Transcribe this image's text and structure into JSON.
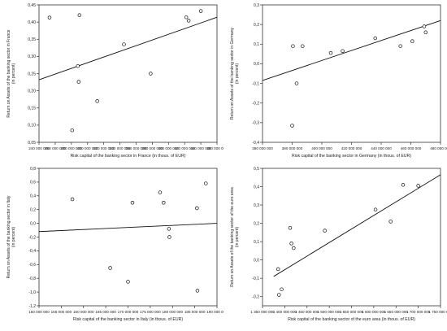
{
  "chart_data": [
    {
      "type": "scatter",
      "xlabel": "Risk capital of the banking sector in France (in thous. of EUR)",
      "ylabel": "Return on Assets of the banking sector in France (in percent)",
      "xlim": [
        240000000,
        460000000
      ],
      "ylim": [
        0.05,
        0.45
      ],
      "xticks": [
        240000000,
        260000000,
        280000000,
        300000000,
        320000000,
        340000000,
        360000000,
        380000000,
        400000000,
        420000000,
        440000000,
        460000000
      ],
      "yticks": [
        0.05,
        0.1,
        0.15,
        0.2,
        0.25,
        0.3,
        0.35,
        0.4,
        0.45
      ],
      "xtick_labels": [
        "240 000 000",
        "260 000 000",
        "280 000 000",
        "300 000 000",
        "320 000 000",
        "340 000 000",
        "360 000 000",
        "380 000 000",
        "400 000 000",
        "420 000 000",
        "440 000 000",
        "460 000 000"
      ],
      "ytick_labels": [
        "0,05",
        "0,10",
        "0,15",
        "0,20",
        "0,25",
        "0,30",
        "0,35",
        "0,40",
        "0,45"
      ],
      "points": [
        [
          253000000,
          0.413
        ],
        [
          281000000,
          0.085
        ],
        [
          288000000,
          0.272
        ],
        [
          289000000,
          0.226
        ],
        [
          290000000,
          0.42
        ],
        [
          312000000,
          0.17
        ],
        [
          345000000,
          0.335
        ],
        [
          378000000,
          0.25
        ],
        [
          422000000,
          0.414
        ],
        [
          425000000,
          0.404
        ],
        [
          440000000,
          0.432
        ]
      ],
      "trendline": [
        [
          240000000,
          0.232
        ],
        [
          460000000,
          0.414
        ]
      ]
    },
    {
      "type": "scatter",
      "xlabel": "Risk capital of the banking sector in Germany (in thous. of EUR)",
      "ylabel": "Return on Assets of the banking sector in Germany (in percent)",
      "xlim": [
        360000000,
        480000000
      ],
      "ylim": [
        -0.4,
        0.3
      ],
      "xticks": [
        360000000,
        380000000,
        400000000,
        420000000,
        440000000,
        460000000,
        480000000
      ],
      "yticks": [
        -0.4,
        -0.3,
        -0.2,
        -0.1,
        0,
        0.1,
        0.2,
        0.3
      ],
      "xtick_labels": [
        "360 000 000",
        "380 000 000",
        "400 000 000",
        "420 000 000",
        "440 000 000",
        "460 000 000",
        "480 000 000"
      ],
      "ytick_labels": [
        "-0,4",
        "-0,3",
        "-0,2",
        "-0,1",
        "0,0",
        "0,1",
        "0,2",
        "0,3"
      ],
      "points": [
        [
          380000000,
          -0.315
        ],
        [
          380500000,
          0.09
        ],
        [
          383000000,
          -0.1
        ],
        [
          387000000,
          0.09
        ],
        [
          406000000,
          0.055
        ],
        [
          414000000,
          0.065
        ],
        [
          436000000,
          0.13
        ],
        [
          453000000,
          0.09
        ],
        [
          461000000,
          0.115
        ],
        [
          469000000,
          0.19
        ],
        [
          470000000,
          0.16
        ]
      ],
      "trendline": [
        [
          360000000,
          -0.085
        ],
        [
          480000000,
          0.22
        ]
      ]
    },
    {
      "type": "scatter",
      "xlabel": "Risk capital of the banking sector in Italy (in thous. of EUR)",
      "ylabel": "Return on Assets of the banking sector in Italy (in percent)",
      "xlim": [
        150000000,
        190000000
      ],
      "ylim": [
        -1.2,
        0.8
      ],
      "xticks": [
        150000000,
        155000000,
        160000000,
        165000000,
        170000000,
        175000000,
        180000000,
        185000000,
        190000000
      ],
      "yticks": [
        -1.2,
        -1.0,
        -0.8,
        -0.6,
        -0.4,
        -0.2,
        0,
        0.2,
        0.4,
        0.6,
        0.8
      ],
      "xtick_labels": [
        "150 000 000",
        "155 000 000",
        "160 000 000",
        "165 000 000",
        "170 000 000",
        "175 000 000",
        "180 000 000",
        "185 000 000",
        "190 000 000"
      ],
      "ytick_labels": [
        "-1,2",
        "-1,0",
        "-0,8",
        "-0,6",
        "-0,4",
        "-0,2",
        "0,0",
        "0,2",
        "0,4",
        "0,6",
        "0,8"
      ],
      "points": [
        [
          157500000,
          0.35
        ],
        [
          166000000,
          -0.65
        ],
        [
          170000000,
          -0.85
        ],
        [
          171000000,
          0.3
        ],
        [
          177200000,
          0.45
        ],
        [
          178000000,
          0.3
        ],
        [
          179200000,
          -0.08
        ],
        [
          179300000,
          -0.2
        ],
        [
          185500000,
          0.22
        ],
        [
          185600000,
          -0.98
        ],
        [
          187500000,
          0.58
        ]
      ],
      "trendline": [
        [
          150000000,
          -0.12
        ],
        [
          190000000,
          0.0
        ]
      ]
    },
    {
      "type": "scatter",
      "xlabel": "Risk capital of the banking sector of the euro area (in thous. of EUR)",
      "ylabel": "Return on Assets of the banking sector of the euro area (in percent)",
      "xlim": [
        1350000000,
        1750000000
      ],
      "ylim": [
        -0.25,
        0.5
      ],
      "xticks": [
        1350000000,
        1400000000,
        1450000000,
        1500000000,
        1550000000,
        1600000000,
        1650000000,
        1700000000,
        1750000000
      ],
      "yticks": [
        -0.2,
        -0.1,
        0,
        0.1,
        0.2,
        0.3,
        0.4,
        0.5
      ],
      "xtick_labels": [
        "1 350 000 000",
        "1 400 000 000",
        "1 450 000 000",
        "1 500 000 000",
        "1 550 000 000",
        "1 600 000 000",
        "1 650 000 000",
        "1 700 000 000",
        "1 750 000 000"
      ],
      "ytick_labels": [
        "-0,2",
        "-0,1",
        "0,0",
        "0,1",
        "0,2",
        "0,3",
        "0,4",
        "0,5"
      ],
      "points": [
        [
          1385000000,
          -0.05
        ],
        [
          1387000000,
          -0.19
        ],
        [
          1393000000,
          -0.16
        ],
        [
          1412000000,
          0.175
        ],
        [
          1415000000,
          0.09
        ],
        [
          1420000000,
          0.065
        ],
        [
          1490000000,
          0.16
        ],
        [
          1604000000,
          0.275
        ],
        [
          1638000000,
          0.21
        ],
        [
          1666000000,
          0.41
        ],
        [
          1700000000,
          0.405
        ]
      ],
      "trendline": [
        [
          1375000000,
          -0.09
        ],
        [
          1750000000,
          0.465
        ]
      ]
    }
  ]
}
